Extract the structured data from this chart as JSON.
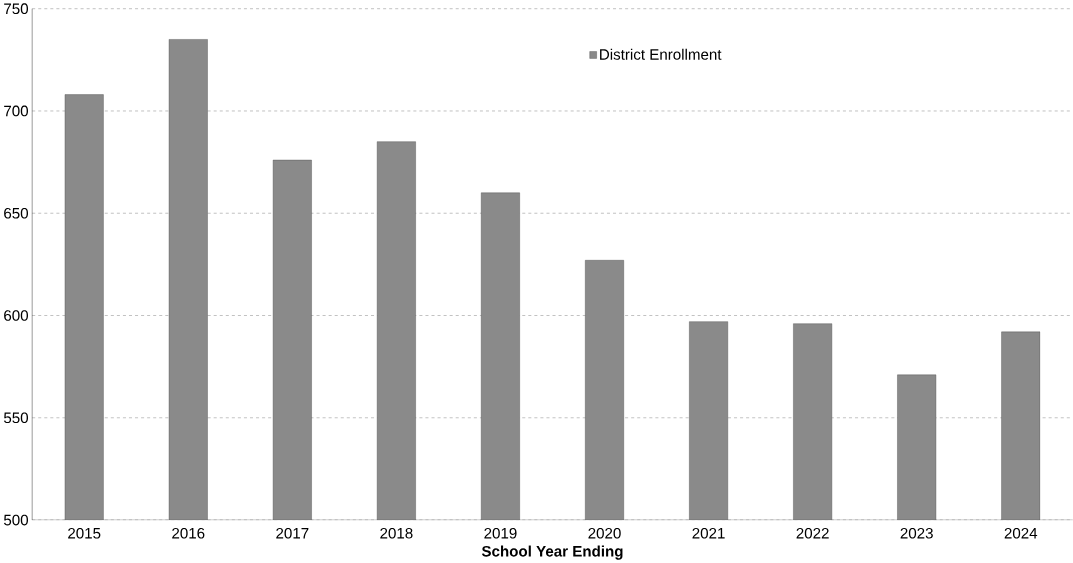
{
  "chart_data": {
    "type": "bar",
    "xlabel": "School Year Ending",
    "categories": [
      "2015",
      "2016",
      "2017",
      "2018",
      "2019",
      "2020",
      "2021",
      "2022",
      "2023",
      "2024"
    ],
    "series": [
      {
        "name": "District Enrollment",
        "color": "#8a8a8a",
        "values": [
          708,
          735,
          676,
          685,
          660,
          627,
          597,
          596,
          571,
          592
        ]
      }
    ],
    "ylim": [
      500,
      750
    ],
    "yticks": [
      500,
      550,
      600,
      650,
      700,
      750
    ],
    "grid": "y",
    "legend": "top"
  }
}
